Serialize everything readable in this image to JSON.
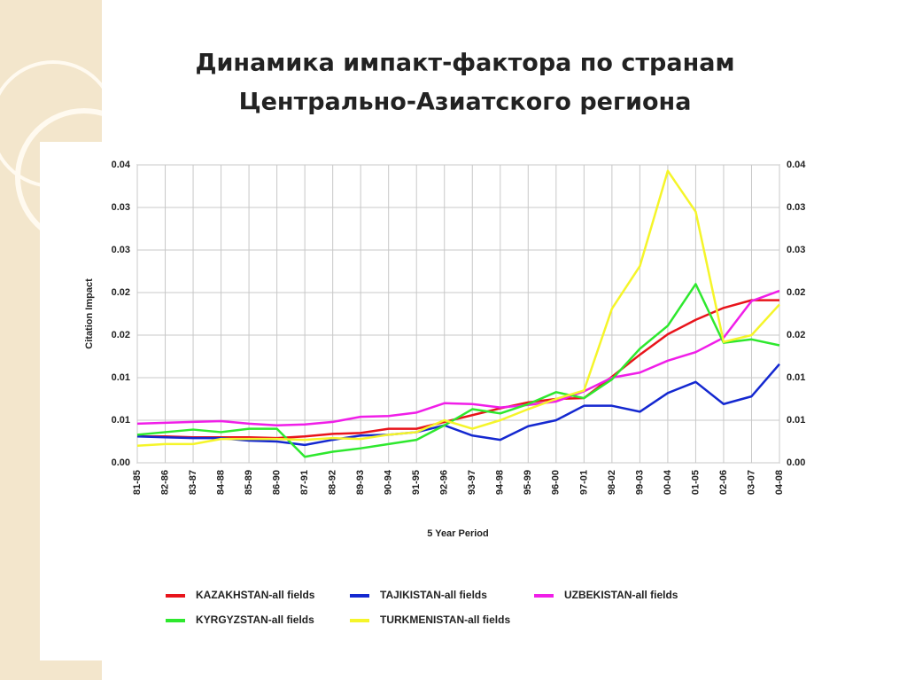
{
  "chart_data": {
    "type": "line",
    "title": [
      "Динамика импакт-фактора по странам",
      "Центрально-Азиатского региона"
    ],
    "y_label": "Citation Impact",
    "x_label": "5 Year Period",
    "categories": [
      "81-85",
      "82-86",
      "83-87",
      "84-88",
      "85-89",
      "86-90",
      "87-91",
      "88-92",
      "89-93",
      "90-94",
      "91-95",
      "92-96",
      "93-97",
      "94-98",
      "95-99",
      "96-00",
      "97-01",
      "98-02",
      "99-03",
      "00-04",
      "01-05",
      "02-06",
      "03-07",
      "04-08"
    ],
    "ylim": [
      0,
      0.035
    ],
    "yticks": [
      {
        "value": 0,
        "label": "0.00"
      },
      {
        "value": 0.005,
        "label": "0.01"
      },
      {
        "value": 0.01,
        "label": "0.01"
      },
      {
        "value": 0.015,
        "label": "0.02"
      },
      {
        "value": 0.02,
        "label": "0.02"
      },
      {
        "value": 0.025,
        "label": "0.03"
      },
      {
        "value": 0.03,
        "label": "0.03"
      },
      {
        "value": 0.035,
        "label": "0.04"
      }
    ],
    "grid": true,
    "series": [
      {
        "name": "KAZAKHSTAN-all fields",
        "color": "#e8141b",
        "values": [
          0.0031,
          0.0031,
          0.003,
          0.003,
          0.003,
          0.0029,
          0.0031,
          0.0034,
          0.0035,
          0.004,
          0.004,
          0.0048,
          0.0056,
          0.0064,
          0.0071,
          0.0075,
          0.0076,
          0.0101,
          0.0127,
          0.0151,
          0.0168,
          0.0182,
          0.0191,
          0.0191
        ]
      },
      {
        "name": "TAJIKISTAN-all fields",
        "color": "#1428d0",
        "values": [
          0.0031,
          0.003,
          0.0029,
          0.0029,
          0.0026,
          0.0025,
          0.0021,
          0.0027,
          0.0032,
          0.0033,
          0.0036,
          0.0044,
          0.0032,
          0.0027,
          0.0043,
          0.005,
          0.0067,
          0.0067,
          0.006,
          0.0082,
          0.0095,
          0.0069,
          0.0078,
          0.0116
        ]
      },
      {
        "name": "UZBEKISTAN-all fields",
        "color": "#f01ee8",
        "values": [
          0.0046,
          0.0047,
          0.0048,
          0.0049,
          0.0046,
          0.0044,
          0.0045,
          0.0048,
          0.0054,
          0.0055,
          0.0059,
          0.007,
          0.0069,
          0.0065,
          0.0068,
          0.0072,
          0.0084,
          0.01,
          0.0106,
          0.012,
          0.013,
          0.0147,
          0.019,
          0.0202
        ]
      },
      {
        "name": "KYRGYZSTAN-all fields",
        "color": "#2ee82e",
        "values": [
          0.0033,
          0.0036,
          0.0039,
          0.0036,
          0.004,
          0.004,
          0.0007,
          0.0013,
          0.0017,
          0.0022,
          0.0027,
          0.0044,
          0.0063,
          0.0058,
          0.0069,
          0.0083,
          0.0076,
          0.0098,
          0.0134,
          0.0161,
          0.021,
          0.0141,
          0.0145,
          0.0138
        ]
      },
      {
        "name": "TURKMENISTAN-all fields",
        "color": "#f5f52a",
        "values": [
          0.002,
          0.0022,
          0.0022,
          0.0028,
          0.0028,
          0.0028,
          0.0027,
          0.0029,
          0.0028,
          0.0033,
          0.0036,
          0.005,
          0.004,
          0.005,
          0.0063,
          0.0075,
          0.0085,
          0.0181,
          0.0231,
          0.0343,
          0.0295,
          0.0142,
          0.015,
          0.0186
        ]
      }
    ]
  }
}
